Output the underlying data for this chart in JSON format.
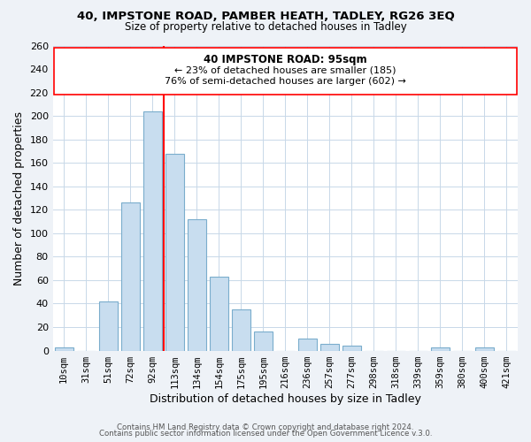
{
  "title1": "40, IMPSTONE ROAD, PAMBER HEATH, TADLEY, RG26 3EQ",
  "title2": "Size of property relative to detached houses in Tadley",
  "xlabel": "Distribution of detached houses by size in Tadley",
  "ylabel": "Number of detached properties",
  "bar_labels": [
    "10sqm",
    "31sqm",
    "51sqm",
    "72sqm",
    "92sqm",
    "113sqm",
    "134sqm",
    "154sqm",
    "175sqm",
    "195sqm",
    "216sqm",
    "236sqm",
    "257sqm",
    "277sqm",
    "298sqm",
    "318sqm",
    "339sqm",
    "359sqm",
    "380sqm",
    "400sqm",
    "421sqm"
  ],
  "bar_values": [
    3,
    0,
    42,
    126,
    204,
    168,
    112,
    63,
    35,
    16,
    0,
    10,
    6,
    4,
    0,
    0,
    0,
    3,
    0,
    3,
    0
  ],
  "bar_color": "#c8ddef",
  "bar_edge_color": "#7aadcc",
  "annotation_title": "40 IMPSTONE ROAD: 95sqm",
  "annotation_line1": "← 23% of detached houses are smaller (185)",
  "annotation_line2": "76% of semi-detached houses are larger (602) →",
  "ylim": [
    0,
    260
  ],
  "yticks": [
    0,
    20,
    40,
    60,
    80,
    100,
    120,
    140,
    160,
    180,
    200,
    220,
    240,
    260
  ],
  "footer1": "Contains HM Land Registry data © Crown copyright and database right 2024.",
  "footer2": "Contains public sector information licensed under the Open Government Licence v.3.0.",
  "bg_color": "#eef2f7",
  "plot_bg_color": "#ffffff",
  "grid_color": "#c8d8e8"
}
